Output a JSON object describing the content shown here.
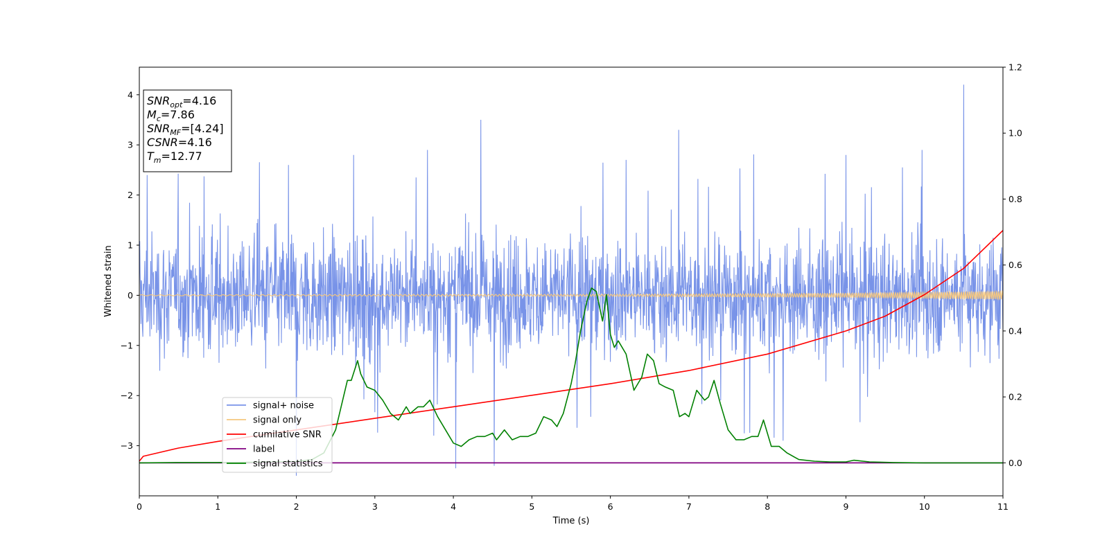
{
  "chart_data": {
    "type": "line",
    "xlabel": "Time (s)",
    "ylabel": "Whitened strain",
    "xlim": [
      0,
      11
    ],
    "ylim": [
      -4,
      4.55
    ],
    "y2lim": [
      -0.1,
      1.2
    ],
    "grid": false,
    "x_ticks": [
      0,
      1,
      2,
      3,
      4,
      5,
      6,
      7,
      8,
      9,
      10,
      11
    ],
    "y_ticks": [
      -3,
      -2,
      -1,
      0,
      1,
      2,
      3,
      4
    ],
    "y2_ticks": [
      "0.0",
      "0.2",
      "0.4",
      "0.6",
      "0.8",
      "1.0",
      "1.2"
    ],
    "legend_placement": "lower-left",
    "legend": [
      {
        "label": "signal+ noise",
        "color": "#7893e8"
      },
      {
        "label": "signal only",
        "color": "#f5c77e"
      },
      {
        "label": "cumilative SNR",
        "color": "#ff0000"
      },
      {
        "label": "label",
        "color": "#800080"
      },
      {
        "label": "signal statistics",
        "color": "#008000"
      }
    ],
    "annotation_box": {
      "lines": [
        {
          "sym": "SNR",
          "sub": "opt",
          "value": "=4.16"
        },
        {
          "sym": "M",
          "sub": "c",
          "value": "=7.86"
        },
        {
          "sym": "SNR",
          "sub": "MF",
          "value": "=[4.24]"
        },
        {
          "sym": "CSNR",
          "sub": "",
          "value": "=4.16"
        },
        {
          "sym": "T",
          "sub": "m",
          "value": "=12.77"
        }
      ]
    },
    "series": [
      {
        "name": "signal+ noise",
        "axis": "left",
        "color": "#7893e8",
        "description": "dense whitened noise, roughly ±2, peaks near 4.2",
        "peaks": [
          [
            0.1,
            2.4
          ],
          [
            1.9,
            2.6
          ],
          [
            2.73,
            2.8
          ],
          [
            3.67,
            2.9
          ],
          [
            4.35,
            3.5
          ],
          [
            6.2,
            2.7
          ],
          [
            6.87,
            3.3
          ],
          [
            9.0,
            2.8
          ],
          [
            9.97,
            2.9
          ],
          [
            10.5,
            4.2
          ],
          [
            2.0,
            -3.6
          ],
          [
            4.03,
            -3.45
          ],
          [
            4.52,
            -3.4
          ],
          [
            8.2,
            -2.9
          ]
        ]
      },
      {
        "name": "signal only",
        "axis": "left",
        "color": "#f5c77e",
        "description": "chirp with growing amplitude",
        "amplitude": [
          [
            0,
            0.01
          ],
          [
            6,
            0.02
          ],
          [
            9,
            0.04
          ],
          [
            10,
            0.06
          ],
          [
            11,
            0.08
          ]
        ]
      },
      {
        "name": "cumilative SNR",
        "axis": "right",
        "color": "#ff0000",
        "x": [
          0,
          0.05,
          0.5,
          1,
          2,
          3,
          4,
          5,
          6,
          7,
          8,
          9,
          9.5,
          10,
          10.5,
          11
        ],
        "values": [
          0.005,
          0.02,
          0.045,
          0.065,
          0.1,
          0.135,
          0.17,
          0.205,
          0.24,
          0.28,
          0.33,
          0.4,
          0.445,
          0.51,
          0.59,
          0.705
        ]
      },
      {
        "name": "label",
        "axis": "right",
        "color": "#800080",
        "x": [
          0,
          11
        ],
        "values": [
          0.0,
          0.0
        ]
      },
      {
        "name": "signal statistics",
        "axis": "right",
        "color": "#008000",
        "x": [
          0,
          0.5,
          1.0,
          1.5,
          2.0,
          2.2,
          2.35,
          2.5,
          2.65,
          2.7,
          2.78,
          2.82,
          2.9,
          3.0,
          3.1,
          3.2,
          3.3,
          3.4,
          3.45,
          3.55,
          3.62,
          3.7,
          3.8,
          3.9,
          4.0,
          4.1,
          4.2,
          4.3,
          4.4,
          4.5,
          4.55,
          4.65,
          4.75,
          4.85,
          4.95,
          5.05,
          5.15,
          5.25,
          5.32,
          5.4,
          5.5,
          5.55,
          5.62,
          5.7,
          5.76,
          5.82,
          5.9,
          5.95,
          6.0,
          6.05,
          6.1,
          6.2,
          6.3,
          6.4,
          6.47,
          6.55,
          6.62,
          6.7,
          6.8,
          6.88,
          6.95,
          7.0,
          7.05,
          7.1,
          7.2,
          7.25,
          7.32,
          7.4,
          7.5,
          7.6,
          7.7,
          7.8,
          7.88,
          7.95,
          8.05,
          8.15,
          8.25,
          8.4,
          8.6,
          8.8,
          9.0,
          9.1,
          9.3,
          9.6,
          10.0,
          10.5,
          11.0
        ],
        "values": [
          0.0,
          0.001,
          0.001,
          0.002,
          0.004,
          0.01,
          0.03,
          0.1,
          0.25,
          0.25,
          0.31,
          0.27,
          0.23,
          0.22,
          0.19,
          0.15,
          0.13,
          0.17,
          0.15,
          0.17,
          0.17,
          0.19,
          0.14,
          0.1,
          0.06,
          0.05,
          0.07,
          0.08,
          0.08,
          0.09,
          0.07,
          0.1,
          0.07,
          0.08,
          0.08,
          0.09,
          0.14,
          0.13,
          0.11,
          0.15,
          0.24,
          0.3,
          0.4,
          0.49,
          0.53,
          0.52,
          0.43,
          0.51,
          0.39,
          0.35,
          0.37,
          0.33,
          0.22,
          0.26,
          0.33,
          0.31,
          0.24,
          0.23,
          0.22,
          0.14,
          0.15,
          0.14,
          0.18,
          0.22,
          0.19,
          0.2,
          0.25,
          0.18,
          0.1,
          0.07,
          0.07,
          0.08,
          0.08,
          0.13,
          0.05,
          0.05,
          0.03,
          0.01,
          0.005,
          0.003,
          0.003,
          0.008,
          0.003,
          0.001,
          0.0,
          0.0,
          0.0
        ]
      }
    ]
  }
}
